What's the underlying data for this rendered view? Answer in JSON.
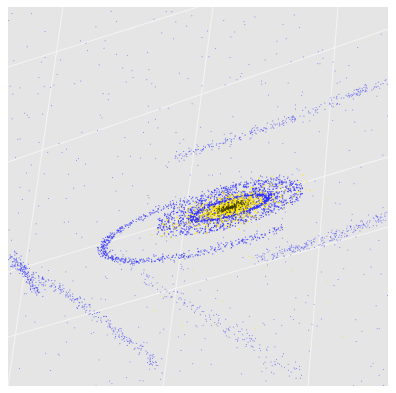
{
  "figure": {
    "kind": "particle-simulation scatter of a galaxy interaction (viewed in 3D)",
    "panel_color": "#e5e5e5",
    "gridline_color": "#f4f4f4",
    "series": [
      {
        "role": "disk particles",
        "color": "#2b2bff"
      },
      {
        "role": "bulge particles",
        "color": "#ffe600"
      },
      {
        "role": "core particles",
        "color": "#3a3a00"
      }
    ]
  }
}
